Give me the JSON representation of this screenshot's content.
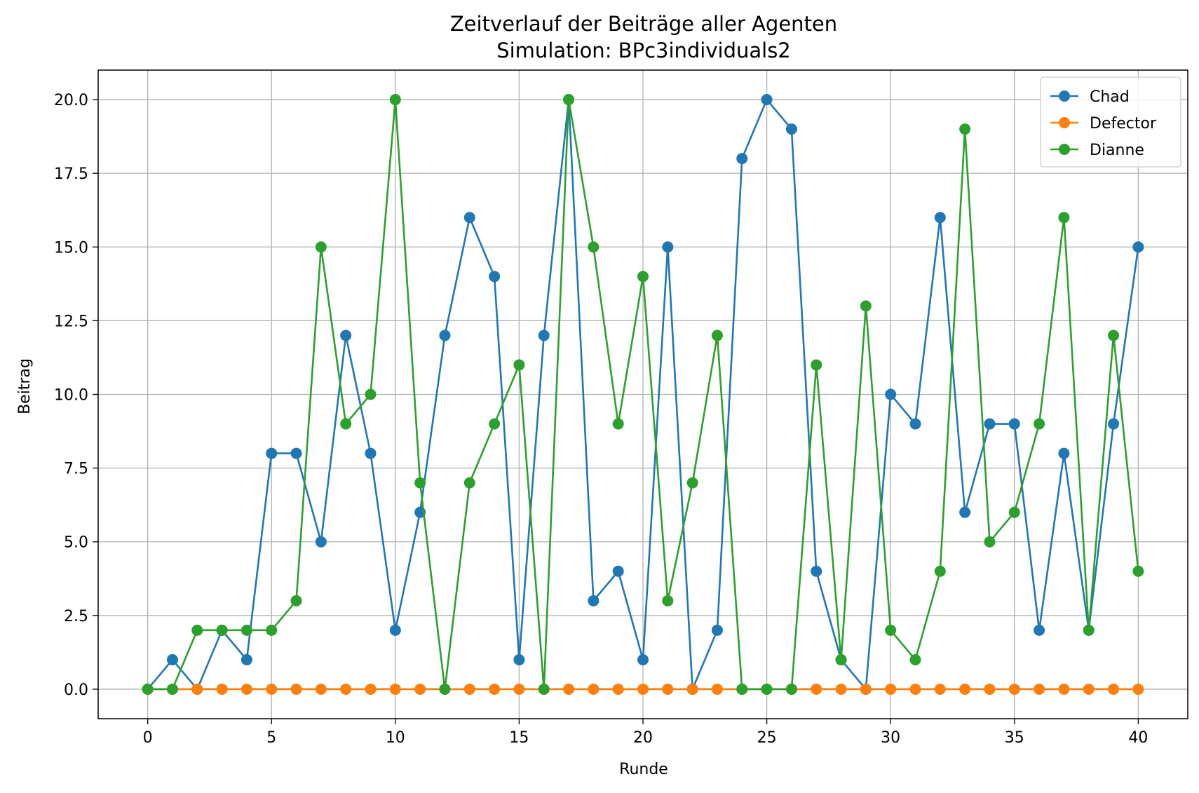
{
  "chart_data": {
    "type": "line",
    "title": "Zeitverlauf der Beiträge aller Agenten",
    "subtitle": "Simulation: BPc3individuals2",
    "xlabel": "Runde",
    "ylabel": "Beitrag",
    "xlim": [
      -2,
      42
    ],
    "ylim": [
      -1,
      21
    ],
    "xticks": [
      0,
      5,
      10,
      15,
      20,
      25,
      30,
      35,
      40
    ],
    "xtick_labels": [
      "0",
      "5",
      "10",
      "15",
      "20",
      "25",
      "30",
      "35",
      "40"
    ],
    "yticks": [
      0,
      2.5,
      5,
      7.5,
      10,
      12.5,
      15,
      17.5,
      20
    ],
    "ytick_labels": [
      "0.0",
      "2.5",
      "5.0",
      "7.5",
      "10.0",
      "12.5",
      "15.0",
      "17.5",
      "20.0"
    ],
    "grid": true,
    "legend_position": "top-right",
    "x": [
      0,
      1,
      2,
      3,
      4,
      5,
      6,
      7,
      8,
      9,
      10,
      11,
      12,
      13,
      14,
      15,
      16,
      17,
      18,
      19,
      20,
      21,
      22,
      23,
      24,
      25,
      26,
      27,
      28,
      29,
      30,
      31,
      32,
      33,
      34,
      35,
      36,
      37,
      38,
      39,
      40
    ],
    "series": [
      {
        "name": "Chad",
        "color": "#1f77b4",
        "values": [
          0,
          1,
          0,
          2,
          1,
          8,
          8,
          5,
          12,
          8,
          2,
          6,
          12,
          16,
          14,
          1,
          12,
          20,
          3,
          4,
          1,
          15,
          0,
          2,
          18,
          20,
          19,
          4,
          1,
          0,
          10,
          9,
          16,
          6,
          9,
          9,
          2,
          8,
          2,
          9,
          15
        ]
      },
      {
        "name": "Defector",
        "color": "#ff7f0e",
        "values": [
          0,
          0,
          0,
          0,
          0,
          0,
          0,
          0,
          0,
          0,
          0,
          0,
          0,
          0,
          0,
          0,
          0,
          0,
          0,
          0,
          0,
          0,
          0,
          0,
          0,
          0,
          0,
          0,
          0,
          0,
          0,
          0,
          0,
          0,
          0,
          0,
          0,
          0,
          0,
          0,
          0
        ]
      },
      {
        "name": "Dianne",
        "color": "#2ca02c",
        "values": [
          0,
          0,
          2,
          2,
          2,
          2,
          3,
          15,
          9,
          10,
          20,
          7,
          0,
          7,
          9,
          11,
          0,
          20,
          15,
          9,
          14,
          3,
          7,
          12,
          0,
          0,
          0,
          11,
          1,
          13,
          2,
          1,
          4,
          19,
          5,
          6,
          9,
          16,
          2,
          12,
          4
        ]
      }
    ]
  }
}
